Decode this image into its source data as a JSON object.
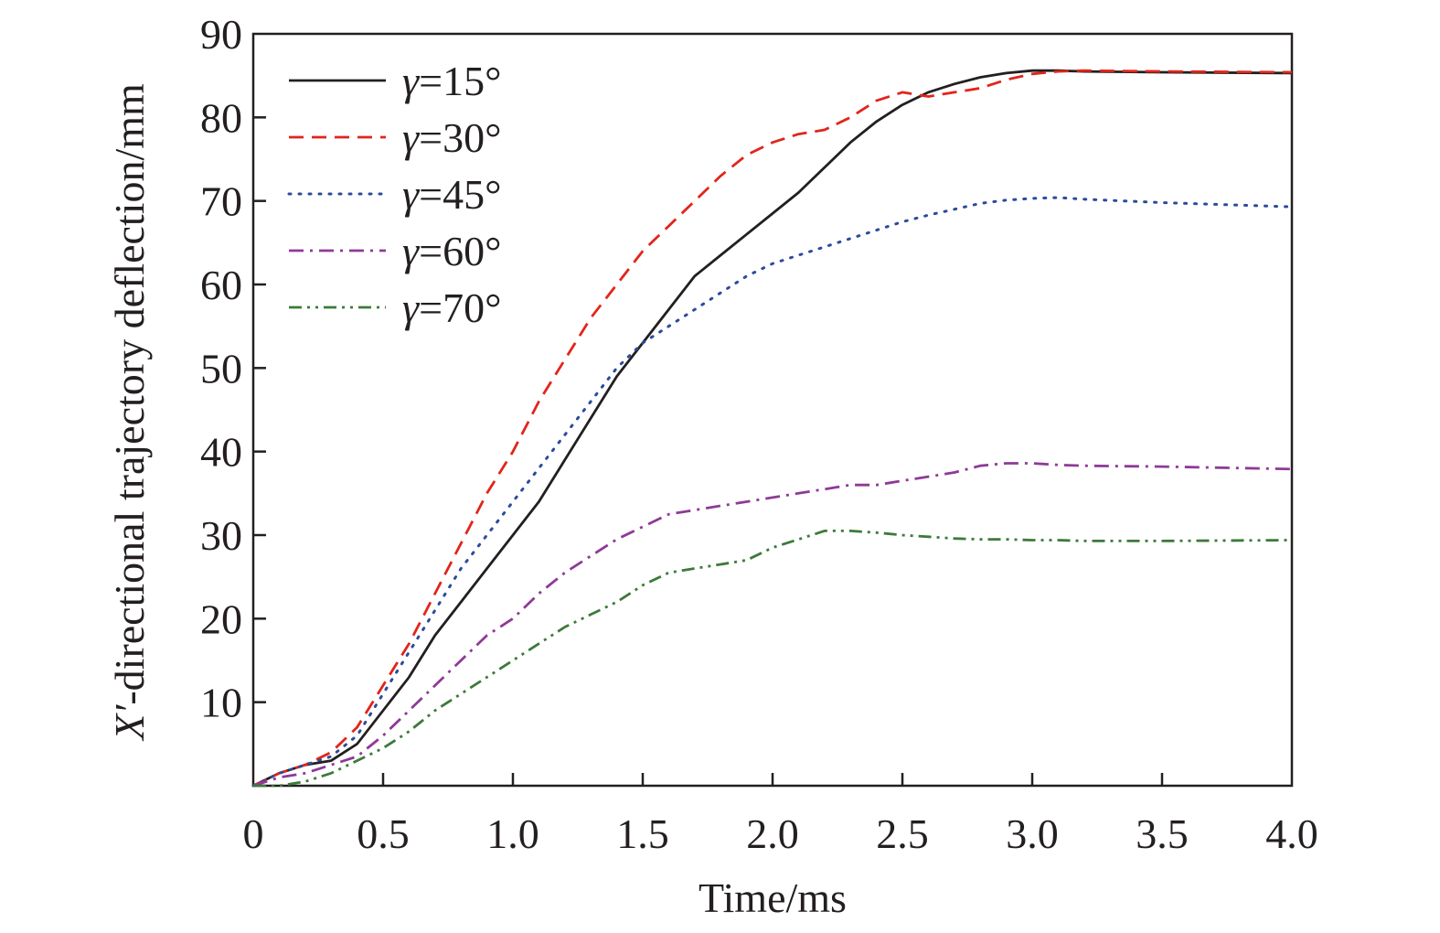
{
  "chart_data": {
    "type": "line",
    "title": "",
    "xlabel": "Time/ms",
    "ylabel_prefix": "X′",
    "ylabel_suffix": "-directional trajectory deflection/mm",
    "xlim": [
      0,
      4.0
    ],
    "ylim": [
      0,
      90
    ],
    "x_ticks": [
      0,
      0.5,
      1.0,
      1.5,
      2.0,
      2.5,
      3.0,
      3.5,
      4.0
    ],
    "x_tick_labels": [
      "0",
      "0.5",
      "1.0",
      "1.5",
      "2.0",
      "2.5",
      "3.0",
      "3.5",
      "4.0"
    ],
    "y_ticks": [
      10,
      20,
      30,
      40,
      50,
      60,
      70,
      80,
      90
    ],
    "y_tick_labels": [
      "10",
      "20",
      "30",
      "40",
      "50",
      "60",
      "70",
      "80",
      "90"
    ],
    "grid": false,
    "legend_position": "top-left",
    "series": [
      {
        "name": "γ=15°",
        "gamma_symbol": "γ",
        "gamma_value": "=15°",
        "color": "#231f20",
        "dash": "solid",
        "x": [
          0,
          0.1,
          0.2,
          0.3,
          0.4,
          0.5,
          0.6,
          0.7,
          0.8,
          0.9,
          1.0,
          1.1,
          1.2,
          1.3,
          1.4,
          1.5,
          1.6,
          1.7,
          1.8,
          1.9,
          2.0,
          2.1,
          2.2,
          2.3,
          2.4,
          2.5,
          2.6,
          2.7,
          2.8,
          2.9,
          3.0,
          3.1,
          3.2,
          3.5,
          4.0
        ],
        "y": [
          0,
          1.5,
          2.5,
          3,
          5,
          9,
          13,
          18,
          22,
          26,
          30,
          34,
          39,
          44,
          49,
          53,
          57,
          61,
          63.5,
          66,
          68.5,
          71,
          74,
          77,
          79.5,
          81.5,
          83,
          84,
          84.8,
          85.3,
          85.6,
          85.6,
          85.5,
          85.4,
          85.3
        ]
      },
      {
        "name": "γ=30°",
        "gamma_symbol": "γ",
        "gamma_value": "=30°",
        "color": "#e1251b",
        "dash": "dashed",
        "x": [
          0,
          0.1,
          0.2,
          0.3,
          0.4,
          0.5,
          0.6,
          0.7,
          0.8,
          0.9,
          1.0,
          1.1,
          1.2,
          1.3,
          1.4,
          1.5,
          1.6,
          1.7,
          1.8,
          1.9,
          2.0,
          2.1,
          2.2,
          2.3,
          2.4,
          2.5,
          2.6,
          2.7,
          2.8,
          2.9,
          3.0,
          3.1,
          3.2,
          3.5,
          4.0
        ],
        "y": [
          0,
          1.5,
          2.5,
          4,
          7,
          12,
          17,
          23,
          29,
          35,
          40,
          46,
          51,
          56,
          60,
          64,
          67,
          70,
          73,
          75.5,
          77,
          78,
          78.5,
          80,
          82,
          83,
          82.5,
          83,
          83.5,
          84.5,
          85.2,
          85.5,
          85.6,
          85.5,
          85.4
        ]
      },
      {
        "name": "γ=45°",
        "gamma_symbol": "γ",
        "gamma_value": "=45°",
        "color": "#2b4b9b",
        "dash": "dotted",
        "x": [
          0,
          0.1,
          0.2,
          0.3,
          0.4,
          0.5,
          0.6,
          0.7,
          0.8,
          0.9,
          1.0,
          1.1,
          1.2,
          1.3,
          1.4,
          1.5,
          1.6,
          1.7,
          1.8,
          1.9,
          2.0,
          2.1,
          2.2,
          2.3,
          2.4,
          2.5,
          2.6,
          2.7,
          2.8,
          2.9,
          3.0,
          3.1,
          3.2,
          3.5,
          4.0
        ],
        "y": [
          0,
          1.5,
          2.5,
          3.5,
          6,
          11,
          16,
          21,
          26,
          30,
          34,
          38,
          42,
          46,
          50,
          53,
          55,
          57,
          59,
          61,
          62.5,
          63.5,
          64.5,
          65.5,
          66.5,
          67.5,
          68.3,
          69,
          69.7,
          70.1,
          70.3,
          70.4,
          70.2,
          69.8,
          69.3
        ]
      },
      {
        "name": "γ=60°",
        "gamma_symbol": "γ",
        "gamma_value": "=60°",
        "color": "#8e3a97",
        "dash": "dashdot",
        "x": [
          0,
          0.1,
          0.2,
          0.3,
          0.4,
          0.5,
          0.6,
          0.7,
          0.8,
          0.9,
          1.0,
          1.1,
          1.2,
          1.3,
          1.4,
          1.5,
          1.6,
          1.7,
          1.8,
          1.9,
          2.0,
          2.1,
          2.2,
          2.3,
          2.4,
          2.5,
          2.6,
          2.7,
          2.8,
          2.9,
          3.0,
          3.1,
          3.2,
          3.5,
          4.0
        ],
        "y": [
          0,
          1,
          1.5,
          2.5,
          3.5,
          6,
          9,
          12,
          15,
          18,
          20,
          23,
          25.5,
          27.5,
          29.5,
          31,
          32.5,
          33,
          33.5,
          34,
          34.5,
          35,
          35.5,
          36,
          36,
          36.5,
          37,
          37.5,
          38.3,
          38.6,
          38.6,
          38.4,
          38.3,
          38.2,
          37.9
        ]
      },
      {
        "name": "γ=70°",
        "gamma_symbol": "γ",
        "gamma_value": "=70°",
        "color": "#3d7a3a",
        "dash": "dashdotdot",
        "x": [
          0,
          0.1,
          0.2,
          0.3,
          0.4,
          0.5,
          0.6,
          0.7,
          0.8,
          0.9,
          1.0,
          1.1,
          1.2,
          1.3,
          1.4,
          1.5,
          1.6,
          1.7,
          1.8,
          1.9,
          2.0,
          2.1,
          2.2,
          2.3,
          2.4,
          2.5,
          2.6,
          2.7,
          2.8,
          2.9,
          3.0,
          3.1,
          3.2,
          3.5,
          4.0
        ],
        "y": [
          0,
          0,
          0.5,
          1.5,
          3,
          4.5,
          6.5,
          9,
          11,
          13,
          15,
          17,
          19,
          20.5,
          22,
          24,
          25.5,
          26,
          26.5,
          27,
          28.5,
          29.5,
          30.5,
          30.5,
          30.3,
          30,
          29.8,
          29.6,
          29.5,
          29.5,
          29.4,
          29.4,
          29.3,
          29.3,
          29.4
        ]
      }
    ]
  }
}
